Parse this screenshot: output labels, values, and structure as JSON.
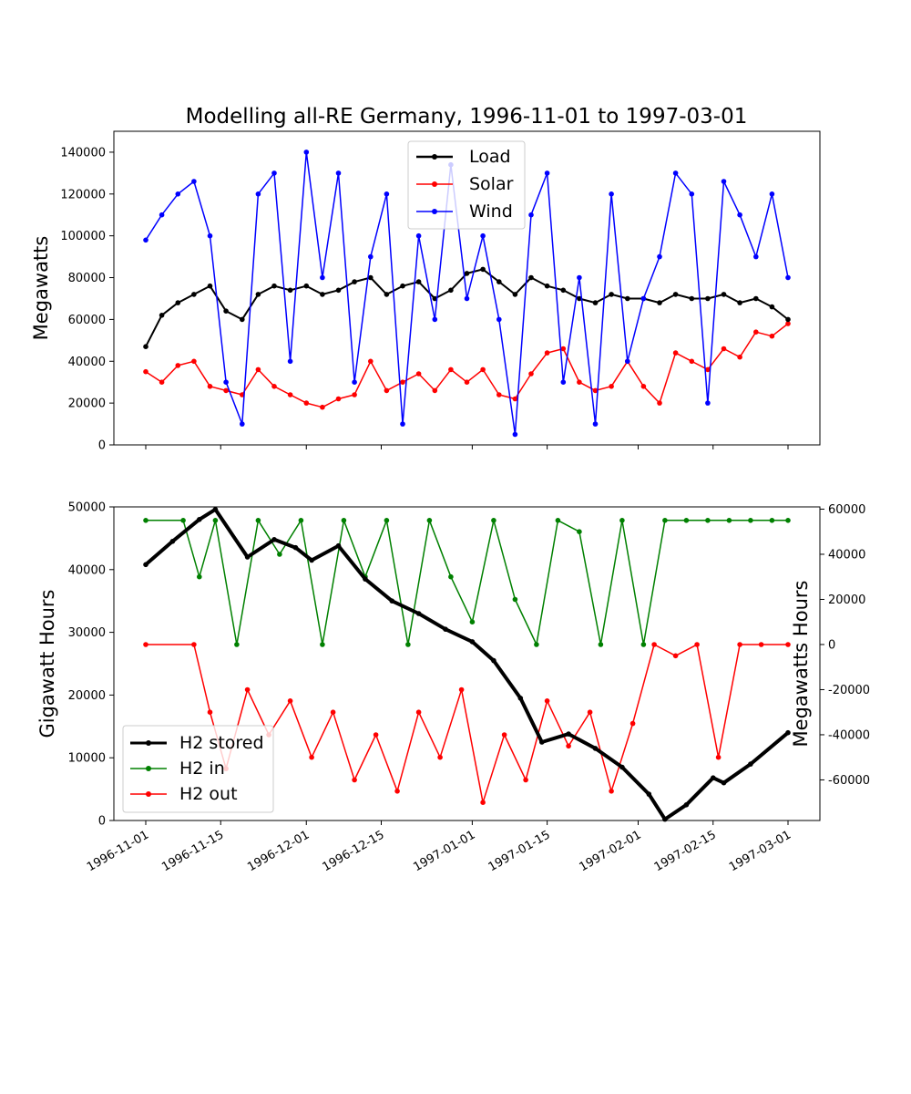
{
  "chart_data": [
    {
      "type": "line",
      "title": "Modelling all-RE Germany, 1996-11-01 to 1997-03-01",
      "xlabel": "",
      "ylabel": "Megawatts",
      "xlim": [
        "1996-11-01",
        "1997-03-01"
      ],
      "ylim": [
        0,
        150000
      ],
      "yticks": [
        0,
        20000,
        40000,
        60000,
        80000,
        100000,
        120000,
        140000
      ],
      "grid": false,
      "legend_position": "top-center",
      "series": [
        {
          "name": "Load",
          "color": "#000000",
          "marker": "dot",
          "x": [
            "1996-11-01",
            "1996-11-04",
            "1996-11-07",
            "1996-11-10",
            "1996-11-13",
            "1996-11-16",
            "1996-11-19",
            "1996-11-22",
            "1996-11-25",
            "1996-11-28",
            "1996-12-01",
            "1996-12-04",
            "1996-12-07",
            "1996-12-10",
            "1996-12-13",
            "1996-12-16",
            "1996-12-19",
            "1996-12-22",
            "1996-12-25",
            "1996-12-28",
            "1996-12-31",
            "1997-01-03",
            "1997-01-06",
            "1997-01-09",
            "1997-01-12",
            "1997-01-15",
            "1997-01-18",
            "1997-01-21",
            "1997-01-24",
            "1997-01-27",
            "1997-01-30",
            "1997-02-02",
            "1997-02-05",
            "1997-02-08",
            "1997-02-11",
            "1997-02-14",
            "1997-02-17",
            "1997-02-20",
            "1997-02-23",
            "1997-02-26",
            "1997-03-01"
          ],
          "values": [
            47000,
            62000,
            68000,
            72000,
            76000,
            64000,
            60000,
            72000,
            76000,
            74000,
            76000,
            72000,
            74000,
            78000,
            80000,
            72000,
            76000,
            78000,
            70000,
            74000,
            82000,
            84000,
            78000,
            72000,
            80000,
            76000,
            74000,
            70000,
            68000,
            72000,
            70000,
            70000,
            68000,
            72000,
            70000,
            70000,
            72000,
            68000,
            70000,
            66000,
            60000
          ]
        },
        {
          "name": "Solar",
          "color": "#ff0000",
          "marker": "dot",
          "x": [
            "1996-11-01",
            "1996-11-04",
            "1996-11-07",
            "1996-11-10",
            "1996-11-13",
            "1996-11-16",
            "1996-11-19",
            "1996-11-22",
            "1996-11-25",
            "1996-11-28",
            "1996-12-01",
            "1996-12-04",
            "1996-12-07",
            "1996-12-10",
            "1996-12-13",
            "1996-12-16",
            "1996-12-19",
            "1996-12-22",
            "1996-12-25",
            "1996-12-28",
            "1996-12-31",
            "1997-01-03",
            "1997-01-06",
            "1997-01-09",
            "1997-01-12",
            "1997-01-15",
            "1997-01-18",
            "1997-01-21",
            "1997-01-24",
            "1997-01-27",
            "1997-01-30",
            "1997-02-02",
            "1997-02-05",
            "1997-02-08",
            "1997-02-11",
            "1997-02-14",
            "1997-02-17",
            "1997-02-20",
            "1997-02-23",
            "1997-02-26",
            "1997-03-01"
          ],
          "values": [
            35000,
            30000,
            38000,
            40000,
            28000,
            26000,
            24000,
            36000,
            28000,
            24000,
            20000,
            18000,
            22000,
            24000,
            40000,
            26000,
            30000,
            34000,
            26000,
            36000,
            30000,
            36000,
            24000,
            22000,
            34000,
            44000,
            46000,
            30000,
            26000,
            28000,
            40000,
            28000,
            20000,
            44000,
            40000,
            36000,
            46000,
            42000,
            54000,
            52000,
            58000
          ]
        },
        {
          "name": "Wind",
          "color": "#0000ff",
          "marker": "dot",
          "x": [
            "1996-11-01",
            "1996-11-04",
            "1996-11-07",
            "1996-11-10",
            "1996-11-13",
            "1996-11-16",
            "1996-11-19",
            "1996-11-22",
            "1996-11-25",
            "1996-11-28",
            "1996-12-01",
            "1996-12-04",
            "1996-12-07",
            "1996-12-10",
            "1996-12-13",
            "1996-12-16",
            "1996-12-19",
            "1996-12-22",
            "1996-12-25",
            "1996-12-28",
            "1996-12-31",
            "1997-01-03",
            "1997-01-06",
            "1997-01-09",
            "1997-01-12",
            "1997-01-15",
            "1997-01-18",
            "1997-01-21",
            "1997-01-24",
            "1997-01-27",
            "1997-01-30",
            "1997-02-02",
            "1997-02-05",
            "1997-02-08",
            "1997-02-11",
            "1997-02-14",
            "1997-02-17",
            "1997-02-20",
            "1997-02-23",
            "1997-02-26",
            "1997-03-01"
          ],
          "values": [
            98000,
            110000,
            120000,
            126000,
            100000,
            30000,
            10000,
            120000,
            130000,
            40000,
            140000,
            80000,
            130000,
            30000,
            90000,
            120000,
            10000,
            100000,
            60000,
            134000,
            70000,
            100000,
            60000,
            5000,
            110000,
            130000,
            30000,
            80000,
            10000,
            120000,
            40000,
            70000,
            90000,
            130000,
            120000,
            20000,
            126000,
            110000,
            90000,
            120000,
            80000
          ]
        }
      ]
    },
    {
      "type": "line",
      "title": "",
      "xlabel": "",
      "ylabel": "Gigawatt Hours",
      "y2label": "Megawatts Hours",
      "xlim": [
        "1996-11-01",
        "1997-03-01"
      ],
      "xticks": [
        "1996-11-01",
        "1996-11-15",
        "1996-12-01",
        "1996-12-15",
        "1997-01-01",
        "1997-01-15",
        "1997-02-01",
        "1997-02-15",
        "1997-03-01"
      ],
      "ylim": [
        0,
        50000
      ],
      "yticks": [
        0,
        10000,
        20000,
        30000,
        40000,
        50000
      ],
      "y2lim": [
        -78000,
        61000
      ],
      "y2ticks": [
        -60000,
        -40000,
        -20000,
        0,
        20000,
        40000,
        60000
      ],
      "grid": false,
      "legend_position": "lower-left",
      "series": [
        {
          "name": "H2 stored",
          "axis": "left",
          "color": "#000000",
          "marker": "dot",
          "x": [
            "1996-11-01",
            "1996-11-06",
            "1996-11-11",
            "1996-11-14",
            "1996-11-20",
            "1996-11-25",
            "1996-11-29",
            "1996-12-02",
            "1996-12-07",
            "1996-12-12",
            "1996-12-17",
            "1996-12-22",
            "1996-12-27",
            "1997-01-01",
            "1997-01-05",
            "1997-01-10",
            "1997-01-14",
            "1997-01-19",
            "1997-01-24",
            "1997-01-29",
            "1997-02-03",
            "1997-02-06",
            "1997-02-10",
            "1997-02-15",
            "1997-02-17",
            "1997-02-22",
            "1997-03-01"
          ],
          "values": [
            40800,
            44500,
            48000,
            49600,
            42000,
            44800,
            43500,
            41500,
            43800,
            38500,
            35000,
            33000,
            30500,
            28500,
            25500,
            19500,
            12500,
            13800,
            11500,
            8500,
            4200,
            200,
            2500,
            6800,
            6000,
            9000,
            14000
          ]
        },
        {
          "name": "H2 in",
          "axis": "right",
          "color": "#008000",
          "marker": "dot",
          "x": [
            "1996-11-01",
            "1996-11-08",
            "1996-11-11",
            "1996-11-14",
            "1996-11-18",
            "1996-11-22",
            "1996-11-26",
            "1996-11-30",
            "1996-12-04",
            "1996-12-08",
            "1996-12-12",
            "1996-12-16",
            "1996-12-20",
            "1996-12-24",
            "1996-12-28",
            "1997-01-01",
            "1997-01-05",
            "1997-01-09",
            "1997-01-13",
            "1997-01-17",
            "1997-01-21",
            "1997-01-25",
            "1997-01-29",
            "1997-02-02",
            "1997-02-06",
            "1997-02-10",
            "1997-02-14",
            "1997-02-18",
            "1997-02-22",
            "1997-02-26",
            "1997-03-01"
          ],
          "values": [
            55000,
            55000,
            30000,
            55000,
            0,
            55000,
            40000,
            55000,
            0,
            55000,
            30000,
            55000,
            0,
            55000,
            30000,
            10000,
            55000,
            20000,
            0,
            55000,
            50000,
            0,
            55000,
            0,
            55000,
            55000,
            55000,
            55000,
            55000,
            55000,
            55000
          ]
        },
        {
          "name": "H2 out",
          "axis": "right",
          "color": "#ff0000",
          "marker": "dot",
          "x": [
            "1996-11-01",
            "1996-11-10",
            "1996-11-13",
            "1996-11-16",
            "1996-11-20",
            "1996-11-24",
            "1996-11-28",
            "1996-12-02",
            "1996-12-06",
            "1996-12-10",
            "1996-12-14",
            "1996-12-18",
            "1996-12-22",
            "1996-12-26",
            "1996-12-30",
            "1997-01-03",
            "1997-01-07",
            "1997-01-11",
            "1997-01-15",
            "1997-01-19",
            "1997-01-23",
            "1997-01-27",
            "1997-01-31",
            "1997-02-04",
            "1997-02-08",
            "1997-02-12",
            "1997-02-16",
            "1997-02-20",
            "1997-02-24",
            "1997-03-01"
          ],
          "values": [
            0,
            0,
            -30000,
            -55000,
            -20000,
            -40000,
            -25000,
            -50000,
            -30000,
            -60000,
            -40000,
            -65000,
            -30000,
            -50000,
            -20000,
            -70000,
            -40000,
            -60000,
            -25000,
            -45000,
            -30000,
            -65000,
            -35000,
            0,
            -5000,
            0,
            -50000,
            0,
            0,
            0
          ]
        }
      ]
    }
  ]
}
